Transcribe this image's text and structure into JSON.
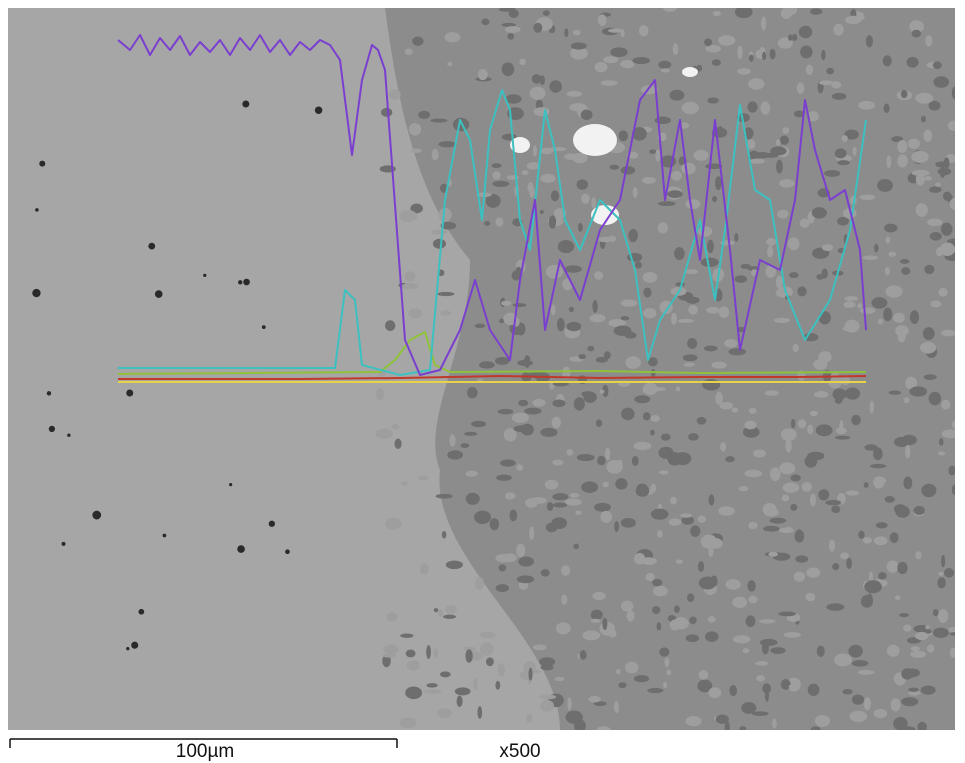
{
  "scale_bar": {
    "label": "100µm"
  },
  "magnification": "x500"
}
